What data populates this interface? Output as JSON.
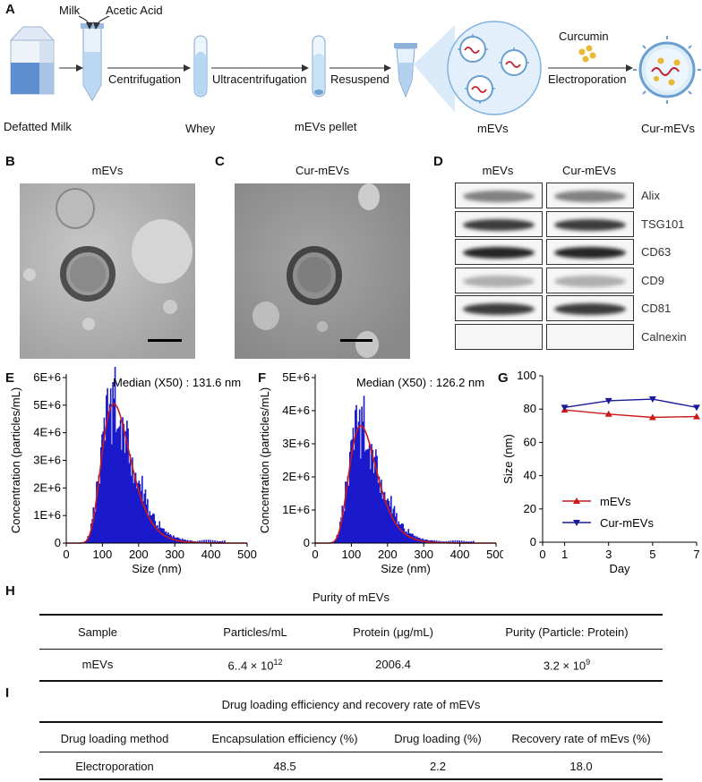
{
  "panels": {
    "A": "A",
    "B": "B",
    "C": "C",
    "D": "D",
    "E": "E",
    "F": "F",
    "G": "G",
    "H": "H",
    "I": "I"
  },
  "panelA": {
    "milk": "Milk",
    "acetic_acid": "Acetic Acid",
    "centrifugation": "Centrifugation",
    "ultracentrifugation": "Ultracentrifugation",
    "resuspend": "Resuspend",
    "curcumin": "Curcumin",
    "electroporation": "Electroporation",
    "defatted_milk": "Defatted  Milk",
    "whey": "Whey",
    "mevs_pellet": "mEVs  pellet",
    "mevs": "mEVs",
    "cur_mevs": "Cur-mEVs"
  },
  "panelB": {
    "title": "mEVs"
  },
  "panelC": {
    "title": "Cur-mEVs"
  },
  "panelD": {
    "col1": "mEVs",
    "col2": "Cur-mEVs",
    "markers": [
      "Alix",
      "TSG101",
      "CD63",
      "CD9",
      "CD81",
      "Calnexin"
    ],
    "intensity": [
      0.55,
      0.85,
      0.95,
      0.35,
      0.85,
      0.0
    ]
  },
  "chart_data": [
    {
      "id": "E",
      "type": "bar",
      "annotation": "Median (X50) : 131.6 nm",
      "xlabel": "Size (nm)",
      "ylabel": "Concentration (particles/mL)",
      "xlim": [
        0,
        500
      ],
      "ylim": [
        0,
        6000000
      ],
      "xticks": [
        0,
        100,
        200,
        300,
        400,
        500
      ],
      "yticks": [
        "0",
        "1E+6",
        "2E+6",
        "3E+6",
        "4E+6",
        "5E+6",
        "6E+6"
      ],
      "fit_peak_size": 131.6,
      "fit_peak_value": 5050000,
      "bar_color": "#1a1acc",
      "fit_color": "#cc1a1a"
    },
    {
      "id": "F",
      "type": "bar",
      "annotation": "Median (X50) : 126.2 nm",
      "xlabel": "Size (nm)",
      "ylabel": "Concentration (particles/mL)",
      "xlim": [
        0,
        500
      ],
      "ylim": [
        0,
        5000000
      ],
      "xticks": [
        0,
        100,
        200,
        300,
        400,
        500
      ],
      "yticks": [
        "0",
        "1E+6",
        "2E+6",
        "3E+6",
        "4E+6",
        "5E+6"
      ],
      "fit_peak_size": 126.2,
      "fit_peak_value": 3550000,
      "bar_color": "#1a1acc",
      "fit_color": "#cc1a1a"
    },
    {
      "id": "G",
      "type": "line",
      "xlabel": "Day",
      "ylabel": "Size (nm)",
      "xlim": [
        0,
        7
      ],
      "ylim": [
        0,
        100
      ],
      "xticks": [
        0,
        1,
        3,
        5,
        7
      ],
      "yticks": [
        0,
        20,
        40,
        60,
        80,
        100
      ],
      "x": [
        1,
        3,
        5,
        7
      ],
      "series": [
        {
          "name": "mEVs",
          "values": [
            79.5,
            77,
            75,
            75.5
          ],
          "color": "#cc1a1a",
          "marker": "triangle-up"
        },
        {
          "name": "Cur-mEVs",
          "values": [
            81,
            85,
            86,
            81
          ],
          "color": "#1a1a99",
          "marker": "triangle-down"
        }
      ]
    }
  ],
  "tableH": {
    "title": "Purity of mEVs",
    "headers": [
      "Sample",
      "Particles/mL",
      "Protein (μg/mL)",
      "Purity (Particle: Protein)"
    ],
    "row": [
      "mEVs",
      "6..4 × 10",
      "12",
      "2006.4",
      "3.2 × 10",
      "9"
    ]
  },
  "tableI": {
    "title": "Drug loading efficiency and recovery rate of mEVs",
    "headers": [
      "Drug loading method",
      "Encapsulation efficiency (%)",
      "Drug loading (%)",
      "Recovery rate of mEvs (%)"
    ],
    "row": [
      "Electroporation",
      "48.5",
      "2.2",
      "18.0"
    ]
  }
}
